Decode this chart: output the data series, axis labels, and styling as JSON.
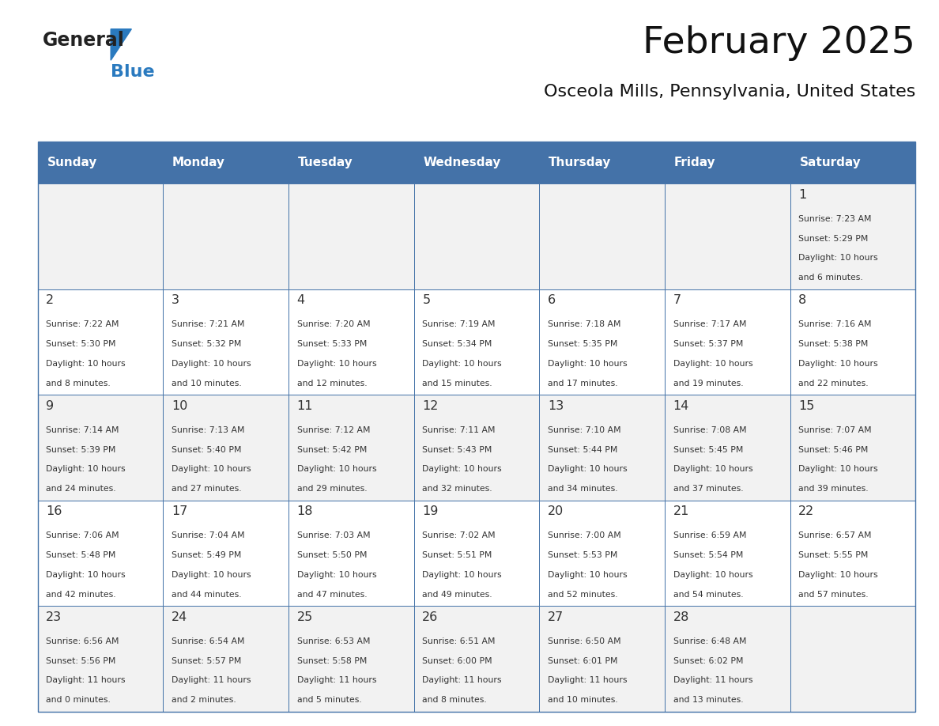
{
  "title": "February 2025",
  "subtitle": "Osceola Mills, Pennsylvania, United States",
  "days_of_week": [
    "Sunday",
    "Monday",
    "Tuesday",
    "Wednesday",
    "Thursday",
    "Friday",
    "Saturday"
  ],
  "header_bg": "#4472a8",
  "header_text": "#ffffff",
  "cell_bg_light": "#f2f2f2",
  "cell_bg_white": "#ffffff",
  "cell_border": "#4472a8",
  "text_color": "#333333",
  "day_num_color": "#333333",
  "logo_general_color": "#222222",
  "logo_blue_color": "#2a7abf",
  "title_color": "#111111",
  "subtitle_color": "#111111",
  "calendar_data": [
    [
      null,
      null,
      null,
      null,
      null,
      null,
      {
        "day": 1,
        "sunrise": "7:23 AM",
        "sunset": "5:29 PM",
        "daylight": "10 hours and 6 minutes."
      }
    ],
    [
      {
        "day": 2,
        "sunrise": "7:22 AM",
        "sunset": "5:30 PM",
        "daylight": "10 hours and 8 minutes."
      },
      {
        "day": 3,
        "sunrise": "7:21 AM",
        "sunset": "5:32 PM",
        "daylight": "10 hours and 10 minutes."
      },
      {
        "day": 4,
        "sunrise": "7:20 AM",
        "sunset": "5:33 PM",
        "daylight": "10 hours and 12 minutes."
      },
      {
        "day": 5,
        "sunrise": "7:19 AM",
        "sunset": "5:34 PM",
        "daylight": "10 hours and 15 minutes."
      },
      {
        "day": 6,
        "sunrise": "7:18 AM",
        "sunset": "5:35 PM",
        "daylight": "10 hours and 17 minutes."
      },
      {
        "day": 7,
        "sunrise": "7:17 AM",
        "sunset": "5:37 PM",
        "daylight": "10 hours and 19 minutes."
      },
      {
        "day": 8,
        "sunrise": "7:16 AM",
        "sunset": "5:38 PM",
        "daylight": "10 hours and 22 minutes."
      }
    ],
    [
      {
        "day": 9,
        "sunrise": "7:14 AM",
        "sunset": "5:39 PM",
        "daylight": "10 hours and 24 minutes."
      },
      {
        "day": 10,
        "sunrise": "7:13 AM",
        "sunset": "5:40 PM",
        "daylight": "10 hours and 27 minutes."
      },
      {
        "day": 11,
        "sunrise": "7:12 AM",
        "sunset": "5:42 PM",
        "daylight": "10 hours and 29 minutes."
      },
      {
        "day": 12,
        "sunrise": "7:11 AM",
        "sunset": "5:43 PM",
        "daylight": "10 hours and 32 minutes."
      },
      {
        "day": 13,
        "sunrise": "7:10 AM",
        "sunset": "5:44 PM",
        "daylight": "10 hours and 34 minutes."
      },
      {
        "day": 14,
        "sunrise": "7:08 AM",
        "sunset": "5:45 PM",
        "daylight": "10 hours and 37 minutes."
      },
      {
        "day": 15,
        "sunrise": "7:07 AM",
        "sunset": "5:46 PM",
        "daylight": "10 hours and 39 minutes."
      }
    ],
    [
      {
        "day": 16,
        "sunrise": "7:06 AM",
        "sunset": "5:48 PM",
        "daylight": "10 hours and 42 minutes."
      },
      {
        "day": 17,
        "sunrise": "7:04 AM",
        "sunset": "5:49 PM",
        "daylight": "10 hours and 44 minutes."
      },
      {
        "day": 18,
        "sunrise": "7:03 AM",
        "sunset": "5:50 PM",
        "daylight": "10 hours and 47 minutes."
      },
      {
        "day": 19,
        "sunrise": "7:02 AM",
        "sunset": "5:51 PM",
        "daylight": "10 hours and 49 minutes."
      },
      {
        "day": 20,
        "sunrise": "7:00 AM",
        "sunset": "5:53 PM",
        "daylight": "10 hours and 52 minutes."
      },
      {
        "day": 21,
        "sunrise": "6:59 AM",
        "sunset": "5:54 PM",
        "daylight": "10 hours and 54 minutes."
      },
      {
        "day": 22,
        "sunrise": "6:57 AM",
        "sunset": "5:55 PM",
        "daylight": "10 hours and 57 minutes."
      }
    ],
    [
      {
        "day": 23,
        "sunrise": "6:56 AM",
        "sunset": "5:56 PM",
        "daylight": "11 hours and 0 minutes."
      },
      {
        "day": 24,
        "sunrise": "6:54 AM",
        "sunset": "5:57 PM",
        "daylight": "11 hours and 2 minutes."
      },
      {
        "day": 25,
        "sunrise": "6:53 AM",
        "sunset": "5:58 PM",
        "daylight": "11 hours and 5 minutes."
      },
      {
        "day": 26,
        "sunrise": "6:51 AM",
        "sunset": "6:00 PM",
        "daylight": "11 hours and 8 minutes."
      },
      {
        "day": 27,
        "sunrise": "6:50 AM",
        "sunset": "6:01 PM",
        "daylight": "11 hours and 10 minutes."
      },
      {
        "day": 28,
        "sunrise": "6:48 AM",
        "sunset": "6:02 PM",
        "daylight": "11 hours and 13 minutes."
      },
      null
    ]
  ]
}
